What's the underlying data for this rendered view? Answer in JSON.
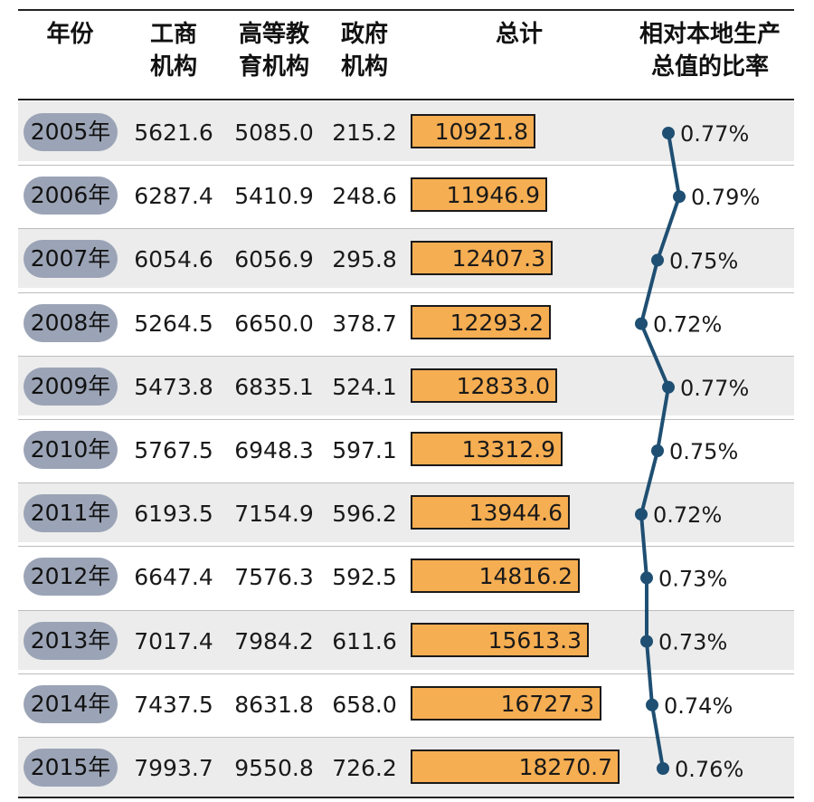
{
  "headers": {
    "year": "年份",
    "commercial": "工商\n机构",
    "higher_ed": "高等教\n育机构",
    "government": "政府\n机构",
    "total": "总计",
    "ratio": "相对本地生产\n总值的比率"
  },
  "colors": {
    "bar": "#f6ae52",
    "line": "#1f4f72",
    "year_pill": "#9ba4b6",
    "row_alt": "#ececec"
  },
  "chart_data": {
    "type": "table",
    "bar_max": 18270.7,
    "ratio_range": [
      0.72,
      0.79
    ],
    "rows": [
      {
        "year": "2005年",
        "commercial": "5621.6",
        "higher_ed": "5085.0",
        "government": "215.2",
        "total": 10921.8,
        "total_label": "10921.8",
        "ratio": 0.77,
        "ratio_label": "0.77%"
      },
      {
        "year": "2006年",
        "commercial": "6287.4",
        "higher_ed": "5410.9",
        "government": "248.6",
        "total": 11946.9,
        "total_label": "11946.9",
        "ratio": 0.79,
        "ratio_label": "0.79%"
      },
      {
        "year": "2007年",
        "commercial": "6054.6",
        "higher_ed": "6056.9",
        "government": "295.8",
        "total": 12407.3,
        "total_label": "12407.3",
        "ratio": 0.75,
        "ratio_label": "0.75%"
      },
      {
        "year": "2008年",
        "commercial": "5264.5",
        "higher_ed": "6650.0",
        "government": "378.7",
        "total": 12293.2,
        "total_label": "12293.2",
        "ratio": 0.72,
        "ratio_label": "0.72%"
      },
      {
        "year": "2009年",
        "commercial": "5473.8",
        "higher_ed": "6835.1",
        "government": "524.1",
        "total": 12833.0,
        "total_label": "12833.0",
        "ratio": 0.77,
        "ratio_label": "0.77%"
      },
      {
        "year": "2010年",
        "commercial": "5767.5",
        "higher_ed": "6948.3",
        "government": "597.1",
        "total": 13312.9,
        "total_label": "13312.9",
        "ratio": 0.75,
        "ratio_label": "0.75%"
      },
      {
        "year": "2011年",
        "commercial": "6193.5",
        "higher_ed": "7154.9",
        "government": "596.2",
        "total": 13944.6,
        "total_label": "13944.6",
        "ratio": 0.72,
        "ratio_label": "0.72%"
      },
      {
        "year": "2012年",
        "commercial": "6647.4",
        "higher_ed": "7576.3",
        "government": "592.5",
        "total": 14816.2,
        "total_label": "14816.2",
        "ratio": 0.73,
        "ratio_label": "0.73%"
      },
      {
        "year": "2013年",
        "commercial": "7017.4",
        "higher_ed": "7984.2",
        "government": "611.6",
        "total": 15613.3,
        "total_label": "15613.3",
        "ratio": 0.73,
        "ratio_label": "0.73%"
      },
      {
        "year": "2014年",
        "commercial": "7437.5",
        "higher_ed": "8631.8",
        "government": "658.0",
        "total": 16727.3,
        "total_label": "16727.3",
        "ratio": 0.74,
        "ratio_label": "0.74%"
      },
      {
        "year": "2015年",
        "commercial": "7993.7",
        "higher_ed": "9550.8",
        "government": "726.2",
        "total": 18270.7,
        "total_label": "18270.7",
        "ratio": 0.76,
        "ratio_label": "0.76%"
      }
    ]
  }
}
